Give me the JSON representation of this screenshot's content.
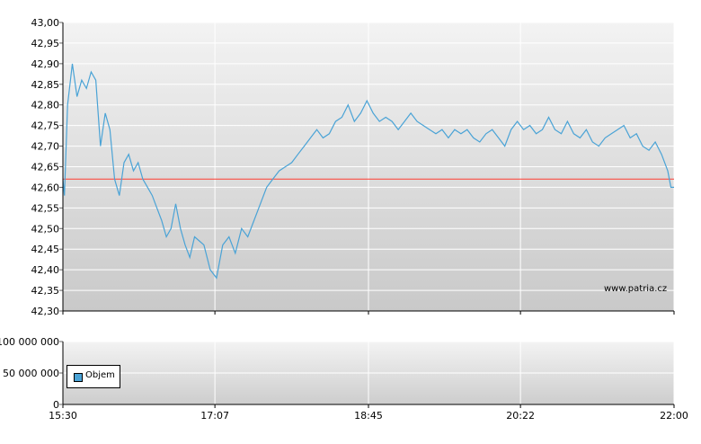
{
  "chart_data": [
    {
      "type": "line",
      "title": "",
      "xlabel": "",
      "ylabel": "",
      "ylim": [
        42.3,
        43.0
      ],
      "x_ticks": [
        "15:30",
        "17:07",
        "18:45",
        "20:22",
        "22:00"
      ],
      "y_ticks": [
        "43,00",
        "42,95",
        "42,90",
        "42,85",
        "42,80",
        "42,75",
        "42,70",
        "42,65",
        "42,60",
        "42,55",
        "42,50",
        "42,45",
        "42,40",
        "42,35",
        "42,30"
      ],
      "grid": true,
      "reference_line": {
        "value": 42.62,
        "color": "#ff3b30"
      },
      "series": [
        {
          "color": "#4aa3d6",
          "x": [
            "15:30",
            "15:31",
            "15:33",
            "15:36",
            "15:39",
            "15:42",
            "15:45",
            "15:48",
            "15:51",
            "15:54",
            "15:57",
            "16:00",
            "16:03",
            "16:06",
            "16:09",
            "16:12",
            "16:15",
            "16:18",
            "16:21",
            "16:24",
            "16:27",
            "16:30",
            "16:33",
            "16:36",
            "16:39",
            "16:42",
            "16:45",
            "16:48",
            "16:51",
            "16:54",
            "16:57",
            "17:00",
            "17:04",
            "17:08",
            "17:12",
            "17:16",
            "17:20",
            "17:24",
            "17:28",
            "17:32",
            "17:36",
            "17:40",
            "17:44",
            "17:48",
            "17:52",
            "17:56",
            "18:00",
            "18:04",
            "18:08",
            "18:12",
            "18:16",
            "18:20",
            "18:24",
            "18:28",
            "18:32",
            "18:36",
            "18:40",
            "18:44",
            "18:48",
            "18:52",
            "18:56",
            "19:00",
            "19:04",
            "19:08",
            "19:12",
            "19:16",
            "19:20",
            "19:24",
            "19:28",
            "19:32",
            "19:36",
            "19:40",
            "19:44",
            "19:48",
            "19:52",
            "19:56",
            "20:00",
            "20:04",
            "20:08",
            "20:12",
            "20:16",
            "20:20",
            "20:24",
            "20:28",
            "20:32",
            "20:36",
            "20:40",
            "20:44",
            "20:48",
            "20:52",
            "20:56",
            "21:00",
            "21:04",
            "21:08",
            "21:12",
            "21:16",
            "21:20",
            "21:24",
            "21:28",
            "21:32",
            "21:36",
            "21:40",
            "21:44",
            "21:48",
            "21:52",
            "21:56",
            "21:58",
            "22:00"
          ],
          "values": [
            42.62,
            42.58,
            42.8,
            42.9,
            42.82,
            42.86,
            42.84,
            42.88,
            42.86,
            42.7,
            42.78,
            42.74,
            42.62,
            42.58,
            42.66,
            42.68,
            42.64,
            42.66,
            42.62,
            42.6,
            42.58,
            42.55,
            42.52,
            42.48,
            42.5,
            42.56,
            42.5,
            42.46,
            42.43,
            42.48,
            42.47,
            42.46,
            42.4,
            42.38,
            42.46,
            42.48,
            42.44,
            42.5,
            42.48,
            42.52,
            42.56,
            42.6,
            42.62,
            42.64,
            42.65,
            42.66,
            42.68,
            42.7,
            42.72,
            42.74,
            42.72,
            42.73,
            42.76,
            42.77,
            42.8,
            42.76,
            42.78,
            42.81,
            42.78,
            42.76,
            42.77,
            42.76,
            42.74,
            42.76,
            42.78,
            42.76,
            42.75,
            42.74,
            42.73,
            42.74,
            42.72,
            42.74,
            42.73,
            42.74,
            42.72,
            42.71,
            42.73,
            42.74,
            42.72,
            42.7,
            42.74,
            42.76,
            42.74,
            42.75,
            42.73,
            42.74,
            42.77,
            42.74,
            42.73,
            42.76,
            42.73,
            42.72,
            42.74,
            42.71,
            42.7,
            42.72,
            42.73,
            42.74,
            42.75,
            42.72,
            42.73,
            42.7,
            42.69,
            42.71,
            42.68,
            42.64,
            42.6,
            42.6
          ]
        }
      ]
    },
    {
      "type": "bar",
      "title": "",
      "ylim": [
        0,
        100000000
      ],
      "y_ticks": [
        "100 000 000",
        "50 000 000",
        "0"
      ],
      "x_ticks": [
        "15:30",
        "17:07",
        "18:45",
        "20:22",
        "22:00"
      ],
      "grid": true,
      "legend": {
        "placement": "bottom-left",
        "entries": [
          "Objem"
        ]
      },
      "series": [
        {
          "name": "Objem",
          "color": "#4aa3d6",
          "values": []
        }
      ]
    }
  ],
  "watermark": "www.patria.cz"
}
